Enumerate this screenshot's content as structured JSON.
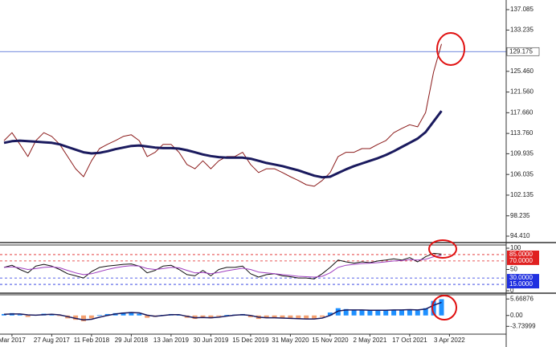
{
  "chart_data": [
    {
      "type": "line",
      "ylim": [
        93.5,
        138.9
      ],
      "yticks": [
        137.085,
        133.235,
        {
          "value": 125.46,
          "label": "125.460"
        },
        {
          "value": 121.56,
          "label": "121.560"
        },
        {
          "value": 117.66,
          "label": "117.660"
        },
        {
          "value": 113.76,
          "label": "113.760"
        },
        109.935,
        106.035,
        102.135,
        98.235,
        {
          "value": 94.41,
          "label": "94.410"
        }
      ],
      "current_price": 129.175,
      "current_price_color": "#4060d0",
      "series": [
        {
          "color": "#8b1a1a",
          "line_width": 1,
          "values": [
            112.4,
            113.9,
            111.7,
            109.4,
            112.4,
            113.9,
            113.2,
            111.7,
            109.4,
            107.1,
            105.6,
            108.6,
            110.9,
            111.7,
            112.4,
            113.2,
            113.5,
            112.4,
            109.4,
            110.2,
            111.7,
            111.7,
            110.2,
            107.9,
            107.1,
            108.6,
            107.1,
            108.6,
            109.4,
            109.4,
            110.2,
            107.9,
            106.4,
            107.1,
            107.1,
            106.4,
            105.6,
            104.9,
            104.1,
            103.8,
            104.9,
            106.4,
            109.4,
            110.2,
            110.2,
            110.9,
            110.9,
            111.7,
            112.4,
            113.9,
            114.7,
            115.4,
            115.0,
            117.7,
            125.3,
            130.6,
            null
          ]
        },
        {
          "color": "#1a1a5e",
          "line_width": 3,
          "values": [
            112.0,
            112.3,
            112.4,
            112.3,
            112.2,
            112.1,
            112.0,
            111.7,
            111.2,
            110.7,
            110.2,
            110.0,
            110.1,
            110.4,
            110.8,
            111.1,
            111.4,
            111.5,
            111.3,
            111.1,
            111.0,
            111.0,
            110.9,
            110.6,
            110.2,
            109.8,
            109.5,
            109.3,
            109.2,
            109.2,
            109.2,
            109.0,
            108.6,
            108.2,
            107.9,
            107.6,
            107.2,
            106.8,
            106.3,
            105.8,
            105.5,
            105.6,
            106.3,
            107.0,
            107.6,
            108.1,
            108.6,
            109.1,
            109.7,
            110.4,
            111.2,
            112.0,
            112.8,
            114.0,
            116.0,
            118.0,
            null
          ]
        }
      ]
    },
    {
      "type": "line",
      "ylim": [
        0,
        100
      ],
      "yticks": [
        100,
        50,
        0
      ],
      "levels": [
        {
          "value": 85,
          "label": "85.0000",
          "color": "#e02020"
        },
        {
          "value": 70,
          "label": "70.0000",
          "color": "#e02020"
        },
        {
          "value": 30,
          "label": "30.0000",
          "color": "#2030e0"
        },
        {
          "value": 15,
          "label": "15.0000",
          "color": "#2030e0"
        }
      ],
      "series": [
        {
          "color": "#111111",
          "line_width": 1,
          "values": [
            55,
            60,
            50,
            42,
            58,
            62,
            58,
            50,
            40,
            35,
            30,
            45,
            55,
            58,
            60,
            62,
            63,
            58,
            42,
            48,
            58,
            60,
            50,
            38,
            35,
            48,
            35,
            50,
            55,
            55,
            58,
            40,
            32,
            38,
            40,
            35,
            33,
            30,
            30,
            28,
            40,
            55,
            72,
            68,
            65,
            68,
            66,
            70,
            72,
            75,
            72,
            78,
            68,
            80,
            88,
            86,
            null
          ]
        },
        {
          "color": "#a040c0",
          "line_width": 1,
          "values": [
            55,
            56,
            54,
            50,
            52,
            55,
            56,
            54,
            48,
            42,
            38,
            40,
            45,
            50,
            54,
            57,
            59,
            58,
            52,
            50,
            52,
            55,
            54,
            48,
            42,
            43,
            40,
            43,
            47,
            50,
            53,
            50,
            44,
            42,
            40,
            38,
            36,
            34,
            33,
            32,
            34,
            42,
            55,
            60,
            62,
            64,
            65,
            66,
            68,
            70,
            71,
            73,
            72,
            74,
            80,
            83,
            null
          ]
        }
      ]
    },
    {
      "type": "bar",
      "ylim": [
        -5.87,
        6.28
      ],
      "yticks": [
        5.66876,
        {
          "value": 0,
          "label": "0.00"
        },
        -3.73999
      ],
      "categories": [
        null,
        "Mar 2017",
        null,
        null,
        null,
        null,
        "27 Aug 2017",
        null,
        null,
        null,
        null,
        "11 Feb 2018",
        null,
        null,
        null,
        null,
        "29 Jul 2018",
        null,
        null,
        null,
        null,
        "13 Jan 2019",
        null,
        null,
        null,
        null,
        "30 Jun 2019",
        null,
        null,
        null,
        null,
        "15 Dec 2019",
        null,
        null,
        null,
        null,
        "31 May 2020",
        null,
        null,
        null,
        null,
        "15 Nov 2020",
        null,
        null,
        null,
        null,
        "2 May 2021",
        null,
        null,
        null,
        null,
        "17 Oct 2021",
        null,
        null,
        null,
        null,
        "3 Apr 2022"
      ],
      "colors": {
        "positive": "#1e90ff",
        "negative": "#f4a070"
      },
      "values": [
        0.5,
        0.8,
        0.3,
        -0.5,
        0.2,
        0.6,
        0.4,
        -0.2,
        -1,
        -1.5,
        -2,
        -1,
        0.2,
        0.5,
        0.8,
        1,
        1.2,
        0.6,
        -0.8,
        -0.5,
        0.2,
        0.5,
        0.1,
        -0.8,
        -1.2,
        -0.5,
        -1,
        -0.3,
        0.2,
        0.3,
        0.5,
        -0.6,
        -1.2,
        -0.9,
        -0.8,
        -1,
        -1.1,
        -1.2,
        -1.3,
        -1.3,
        -0.5,
        1,
        2.5,
        2.2,
        1.8,
        1.9,
        1.7,
        1.8,
        1.9,
        2,
        1.8,
        2.1,
        1.7,
        2.5,
        5,
        5.6,
        null
      ],
      "series": [
        {
          "color": "#1a1a5e",
          "line_width": 1.5,
          "values": [
            0.4,
            0.5,
            0.5,
            0.2,
            0.1,
            0.3,
            0.4,
            0.2,
            -0.4,
            -1,
            -1.5,
            -1.3,
            -0.6,
            0,
            0.5,
            0.8,
            1,
            0.9,
            0.1,
            -0.3,
            0,
            0.3,
            0.3,
            -0.3,
            -0.8,
            -0.7,
            -0.8,
            -0.6,
            -0.2,
            0.1,
            0.3,
            0,
            -0.6,
            -0.8,
            -0.8,
            -0.9,
            -1,
            -1.1,
            -1.2,
            -1.2,
            -0.9,
            0,
            1.5,
            1.9,
            1.9,
            1.9,
            1.8,
            1.8,
            1.8,
            1.9,
            1.9,
            2,
            1.9,
            2.2,
            3.5,
            4.5,
            null
          ]
        }
      ]
    }
  ]
}
